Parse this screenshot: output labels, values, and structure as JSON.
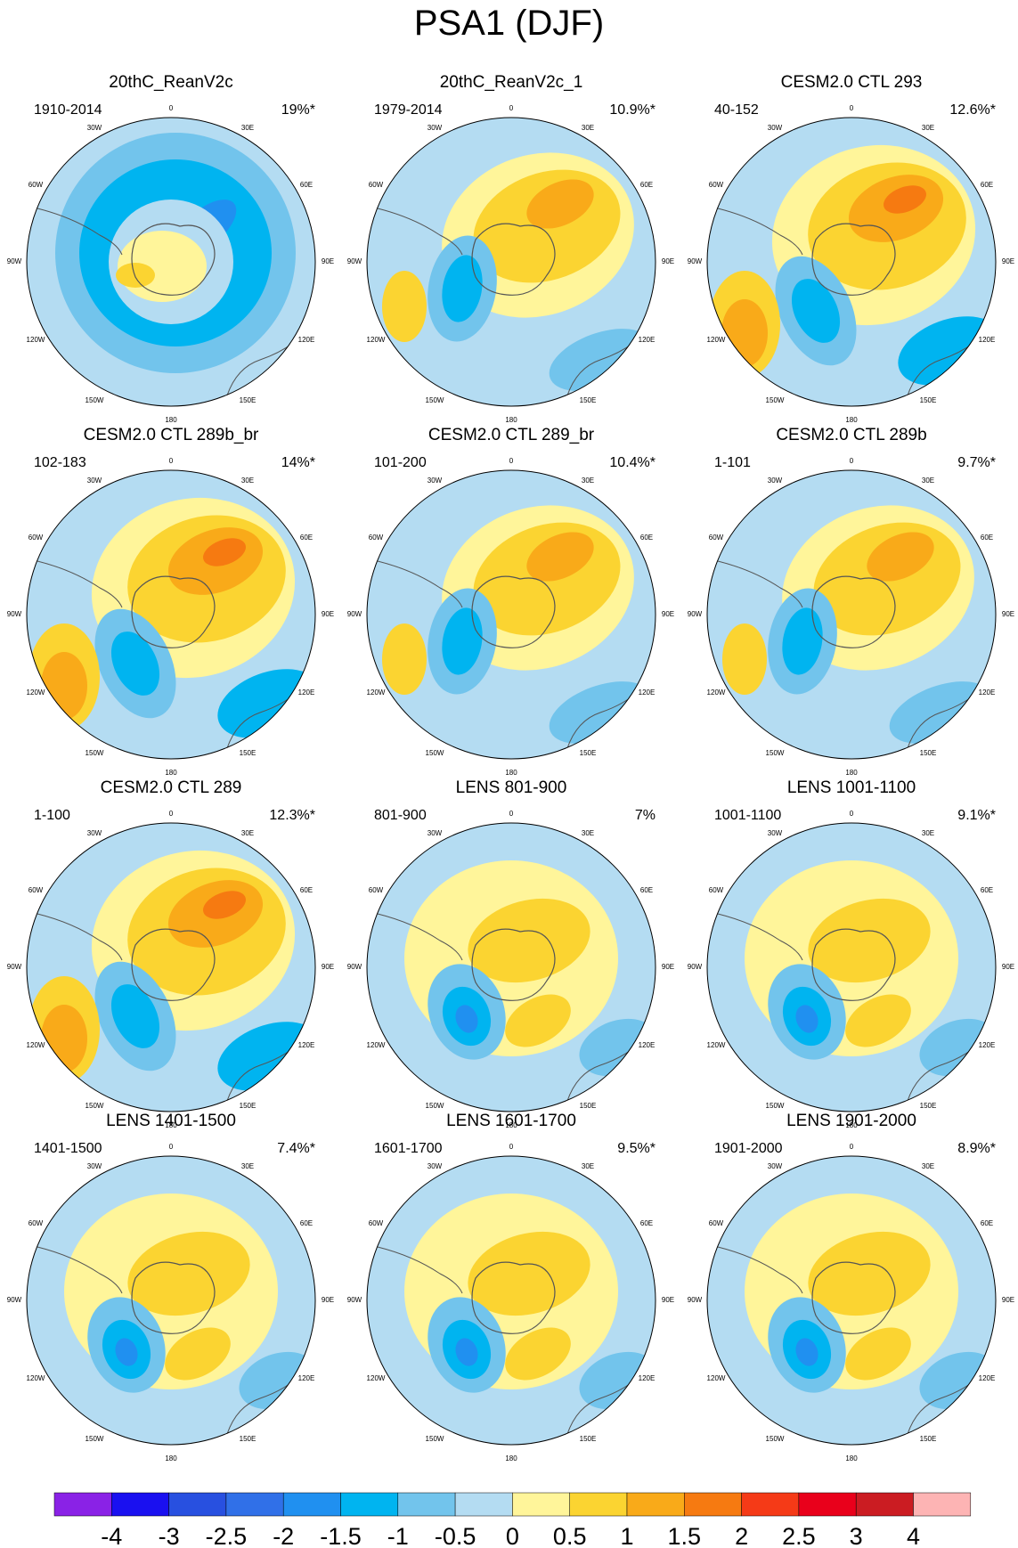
{
  "title": "PSA1 (DJF)",
  "panels": [
    {
      "title": "20thC_ReanV2c",
      "period": "1910-2014",
      "variance": "19%*",
      "pattern": "ring"
    },
    {
      "title": "20thC_ReanV2c_1",
      "period": "1979-2014",
      "variance": "10.9%*",
      "pattern": "wave"
    },
    {
      "title": "CESM2.0 CTL 293",
      "period": "40-152",
      "variance": "12.6%*",
      "pattern": "strong"
    },
    {
      "title": "CESM2.0 CTL 289b_br",
      "period": "102-183",
      "variance": "14%*",
      "pattern": "strong"
    },
    {
      "title": "CESM2.0 CTL 289_br",
      "period": "101-200",
      "variance": "10.4%*",
      "pattern": "wave"
    },
    {
      "title": "CESM2.0 CTL 289b",
      "period": "1-101",
      "variance": "9.7%*",
      "pattern": "wave"
    },
    {
      "title": "CESM2.0 CTL 289",
      "period": "1-100",
      "variance": "12.3%*",
      "pattern": "strong"
    },
    {
      "title": "LENS 801-900",
      "period": "801-900",
      "variance": "7%",
      "pattern": "weak"
    },
    {
      "title": "LENS 1001-1100",
      "period": "1001-1100",
      "variance": "9.1%*",
      "pattern": "weak"
    },
    {
      "title": "LENS 1401-1500",
      "period": "1401-1500",
      "variance": "7.4%*",
      "pattern": "weak"
    },
    {
      "title": "LENS 1601-1700",
      "period": "1601-1700",
      "variance": "9.5%*",
      "pattern": "weak"
    },
    {
      "title": "LENS 1901-2000",
      "period": "1901-2000",
      "variance": "8.9%*",
      "pattern": "weak"
    }
  ],
  "longitude_labels": {
    "top": "0",
    "top_left": "30W",
    "top_right": "30E",
    "upper_left": "60W",
    "upper_right": "60E",
    "left": "90W",
    "right": "90E",
    "lower_left": "120W",
    "lower_right": "120E",
    "bottom_left": "150W",
    "bottom_right": "150E",
    "bottom": "180"
  },
  "colorbar": {
    "ticks": [
      "-4",
      "-3",
      "-2.5",
      "-2",
      "-1.5",
      "-1",
      "-0.5",
      "0",
      "0.5",
      "1",
      "1.5",
      "2",
      "2.5",
      "3",
      "4"
    ],
    "colors": [
      "#8a22e6",
      "#1a10f0",
      "#2850e0",
      "#3070e8",
      "#2090f0",
      "#00b4f0",
      "#72c4ec",
      "#b4dcf2",
      "#fff59a",
      "#fbd431",
      "#f9aa19",
      "#f67a11",
      "#f53a17",
      "#e9001b",
      "#cb1c22",
      "#fdb4b4"
    ]
  }
}
